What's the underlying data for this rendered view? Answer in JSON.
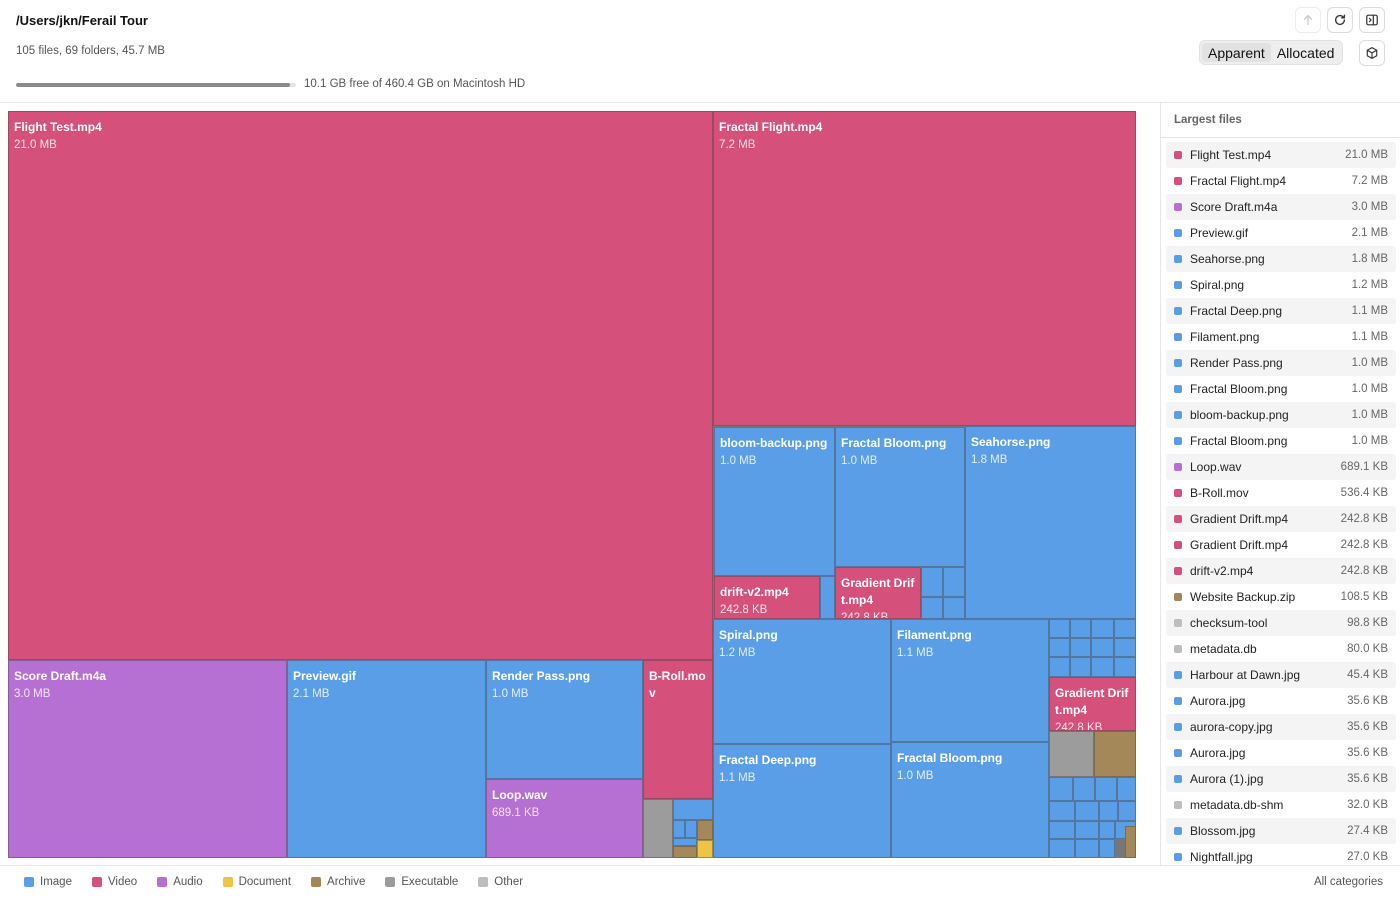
{
  "header": {
    "path": "/Users/jkn/Ferail Tour",
    "summary": "105 files, 69 folders, 45.7 MB",
    "disk_usage_fraction": 0.978,
    "disk_text": "10.1 GB free of 460.4 GB on Macintosh HD",
    "icons": {
      "up": "arrow-up-icon",
      "refresh": "refresh-icon",
      "sidebar": "sidebar-toggle-icon",
      "box": "cube-icon"
    }
  },
  "size_mode": {
    "options": [
      "Apparent",
      "Allocated"
    ],
    "selected": "Apparent"
  },
  "colors": {
    "Image": "#5b9ee8",
    "Video": "#d5507b",
    "Audio": "#b66fd3",
    "Document": "#eec447",
    "Archive": "#a5885a",
    "Executable": "#9c9c9c",
    "Other": "#bdbdbd"
  },
  "treemap": {
    "labeled": [
      {
        "name": "Flight Test.mp4",
        "size": "21.0 MB",
        "kind": "video"
      },
      {
        "name": "Fractal Flight.mp4",
        "size": "7.2 MB",
        "kind": "video"
      },
      {
        "name": "bloom-backup.png",
        "size": "1.0 MB",
        "kind": "image"
      },
      {
        "name": "Fractal Bloom.png",
        "size": "1.0 MB",
        "kind": "image"
      },
      {
        "name": "Seahorse.png",
        "size": "1.8 MB",
        "kind": "image"
      },
      {
        "name": "drift-v2.mp4",
        "size": "242.8 KB",
        "kind": "video"
      },
      {
        "name": "Gradient Drift.mp4",
        "size": "242.8 KB",
        "kind": "video"
      },
      {
        "name": "Spiral.png",
        "size": "1.2 MB",
        "kind": "image"
      },
      {
        "name": "Filament.png",
        "size": "1.1 MB",
        "kind": "image"
      },
      {
        "name": "Gradient Drift.mp4",
        "size": "242.8 KB",
        "kind": "video"
      },
      {
        "name": "Fractal Deep.png",
        "size": "1.1 MB",
        "kind": "image"
      },
      {
        "name": "Fractal Bloom.png",
        "size": "1.0 MB",
        "kind": "image"
      },
      {
        "name": "Score Draft.m4a",
        "size": "3.0 MB",
        "kind": "audio"
      },
      {
        "name": "Preview.gif",
        "size": "2.1 MB",
        "kind": "image"
      },
      {
        "name": "Render Pass.png",
        "size": "1.0 MB",
        "kind": "image"
      },
      {
        "name": "Loop.wav",
        "size": "689.1 KB",
        "kind": "audio"
      },
      {
        "name": "B-Roll.mov",
        "size": "",
        "kind": "video"
      }
    ]
  },
  "sidebar": {
    "title": "Largest files",
    "files": [
      {
        "name": "Flight Test.mp4",
        "size": "21.0 MB",
        "kind": "video"
      },
      {
        "name": "Fractal Flight.mp4",
        "size": "7.2 MB",
        "kind": "video"
      },
      {
        "name": "Score Draft.m4a",
        "size": "3.0 MB",
        "kind": "audio"
      },
      {
        "name": "Preview.gif",
        "size": "2.1 MB",
        "kind": "image"
      },
      {
        "name": "Seahorse.png",
        "size": "1.8 MB",
        "kind": "image"
      },
      {
        "name": "Spiral.png",
        "size": "1.2 MB",
        "kind": "image"
      },
      {
        "name": "Fractal Deep.png",
        "size": "1.1 MB",
        "kind": "image"
      },
      {
        "name": "Filament.png",
        "size": "1.1 MB",
        "kind": "image"
      },
      {
        "name": "Render Pass.png",
        "size": "1.0 MB",
        "kind": "image"
      },
      {
        "name": "Fractal Bloom.png",
        "size": "1.0 MB",
        "kind": "image"
      },
      {
        "name": "bloom-backup.png",
        "size": "1.0 MB",
        "kind": "image"
      },
      {
        "name": "Fractal Bloom.png",
        "size": "1.0 MB",
        "kind": "image"
      },
      {
        "name": "Loop.wav",
        "size": "689.1 KB",
        "kind": "audio"
      },
      {
        "name": "B-Roll.mov",
        "size": "536.4 KB",
        "kind": "video"
      },
      {
        "name": "Gradient Drift.mp4",
        "size": "242.8 KB",
        "kind": "video"
      },
      {
        "name": "Gradient Drift.mp4",
        "size": "242.8 KB",
        "kind": "video"
      },
      {
        "name": "drift-v2.mp4",
        "size": "242.8 KB",
        "kind": "video"
      },
      {
        "name": "Website Backup.zip",
        "size": "108.5 KB",
        "kind": "archive"
      },
      {
        "name": "checksum-tool",
        "size": "98.8 KB",
        "kind": "other"
      },
      {
        "name": "metadata.db",
        "size": "80.0 KB",
        "kind": "other"
      },
      {
        "name": "Harbour at Dawn.jpg",
        "size": "45.4 KB",
        "kind": "image"
      },
      {
        "name": "Aurora.jpg",
        "size": "35.6 KB",
        "kind": "image"
      },
      {
        "name": "aurora-copy.jpg",
        "size": "35.6 KB",
        "kind": "image"
      },
      {
        "name": "Aurora.jpg",
        "size": "35.6 KB",
        "kind": "image"
      },
      {
        "name": "Aurora (1).jpg",
        "size": "35.6 KB",
        "kind": "image"
      },
      {
        "name": "metadata.db-shm",
        "size": "32.0 KB",
        "kind": "other"
      },
      {
        "name": "Blossom.jpg",
        "size": "27.4 KB",
        "kind": "image"
      },
      {
        "name": "Nightfall.jpg",
        "size": "27.0 KB",
        "kind": "image"
      }
    ]
  },
  "legend": [
    {
      "label": "Image",
      "kind": "image"
    },
    {
      "label": "Video",
      "kind": "video"
    },
    {
      "label": "Audio",
      "kind": "audio"
    },
    {
      "label": "Document",
      "kind": "doc"
    },
    {
      "label": "Archive",
      "kind": "archive"
    },
    {
      "label": "Executable",
      "kind": "exec"
    },
    {
      "label": "Other",
      "kind": "other"
    }
  ],
  "footer": {
    "filter_label": "All categories"
  }
}
